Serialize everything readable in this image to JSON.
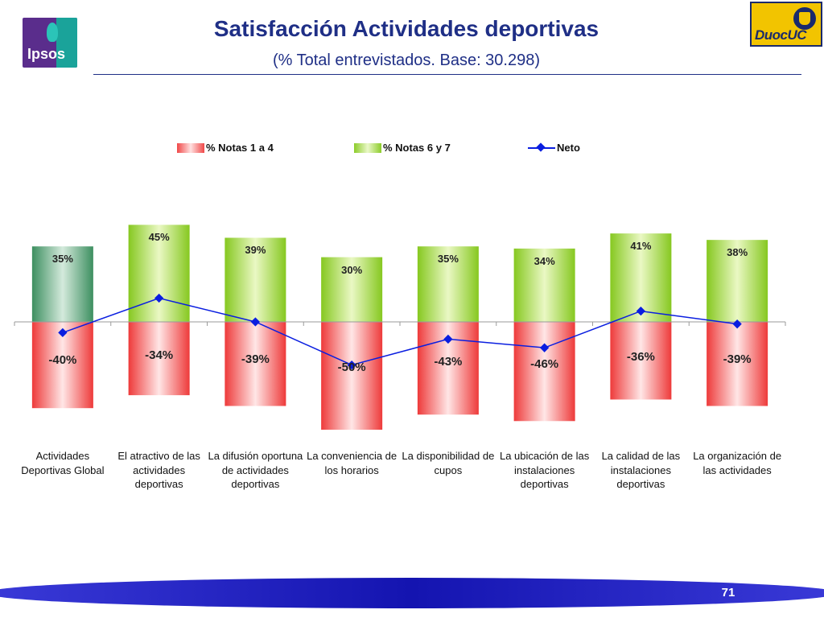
{
  "header": {
    "title": "Satisfacción Actividades deportivas",
    "subtitle": "(% Total entrevistados. Base: 30.298)",
    "ipsos_logo_text": "Ipsos",
    "duoc_logo_text": "DuocUC"
  },
  "footer": {
    "page_number": "71"
  },
  "colors": {
    "title": "#1f2f86",
    "negative": "#f04848",
    "positive": "#8ccc2a",
    "positive_first": "#3d8f60",
    "neto": "#0a1ee0",
    "footer": "#1a1ab8"
  },
  "chart_data": {
    "type": "bar",
    "stacked": "diverging",
    "categories": [
      "Actividades Deportivas Global",
      "El atractivo de las actividades deportivas",
      "La difusión oportuna de actividades deportivas",
      "La conveniencia de los horarios",
      "La disponibilidad de cupos",
      "La ubicación de las instalaciones deportivas",
      "La calidad de las instalaciones deportivas",
      "La organización de las actividades"
    ],
    "series": [
      {
        "name": "% Notas 1 a 4",
        "values": [
          -40,
          -34,
          -39,
          -50,
          -43,
          -46,
          -36,
          -39
        ],
        "labels": [
          "-40%",
          "-34%",
          "-39%",
          "-50%",
          "-43%",
          "-46%",
          "-36%",
          "-39%"
        ]
      },
      {
        "name": "% Notas 6 y 7",
        "values": [
          35,
          45,
          39,
          30,
          35,
          34,
          41,
          38
        ],
        "labels": [
          "35%",
          "45%",
          "39%",
          "30%",
          "35%",
          "34%",
          "41%",
          "38%"
        ]
      },
      {
        "name": "Neto",
        "type": "line",
        "values": [
          -5,
          11,
          0,
          -20,
          -8,
          -12,
          5,
          -1
        ]
      }
    ],
    "legend_position": "top",
    "grid": false
  }
}
